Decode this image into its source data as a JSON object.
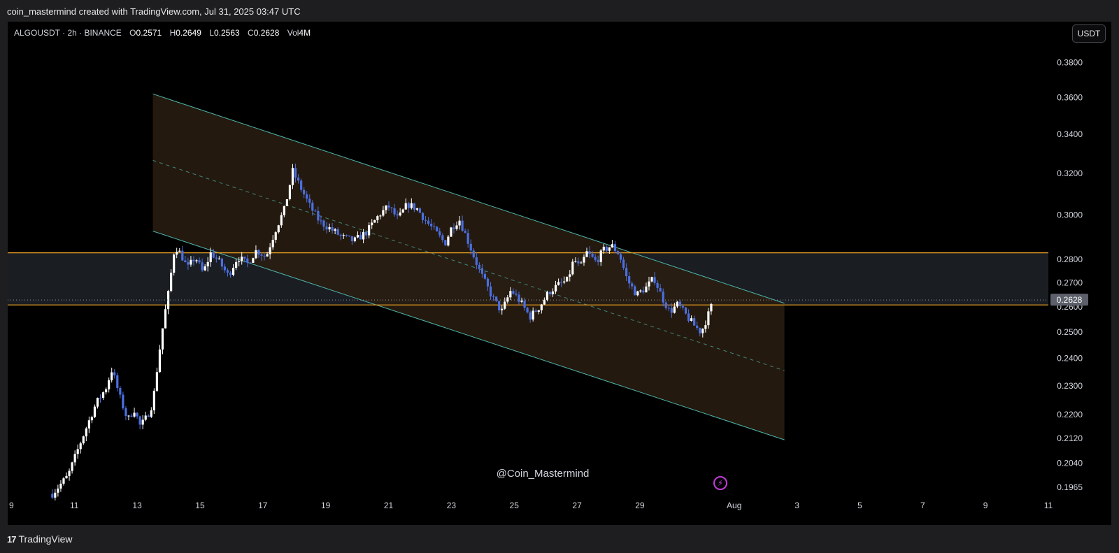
{
  "caption": "coin_mastermind created with TradingView.com, Jul 31, 2025 03:47 UTC",
  "legend": {
    "symbol": "ALGOUSDT · 2h · BINANCE",
    "open_label": "O",
    "open": "0.2571",
    "high_label": "H",
    "high": "0.2649",
    "low_label": "L",
    "low": "0.2563",
    "close_label": "C",
    "close": "0.2628",
    "vol_label": "Vol",
    "vol": "4M"
  },
  "currency_button": "USDT",
  "watermark": "@Coin_Mastermind",
  "footer_brand": "TradingView",
  "colors": {
    "background": "#000000",
    "candle_up": "#ffffff",
    "candle_down": "#4b6fe0",
    "channel_line": "#4db6ac",
    "channel_fill": "#2a1d10",
    "support_lines": "#f5a623",
    "price_label_bg": "#5d606b",
    "accent_icon": "#c23cd9"
  },
  "chart_data": {
    "type": "candlestick",
    "title": "ALGOUSDT · 2h · BINANCE",
    "last_price": "0.2628",
    "y_scale": "log",
    "ylim": [
      0.1935,
      0.405
    ],
    "y_ticks": [
      "0.3800",
      "0.3600",
      "0.3400",
      "0.3200",
      "0.3000",
      "0.2800",
      "0.2700",
      "0.2600",
      "0.2500",
      "0.2400",
      "0.2300",
      "0.2200",
      "0.2120",
      "0.2040",
      "0.1965"
    ],
    "x_ticks": [
      "9",
      "11",
      "13",
      "15",
      "17",
      "19",
      "21",
      "23",
      "25",
      "27",
      "29",
      "Aug",
      "3",
      "5",
      "7",
      "9",
      "11"
    ],
    "x_tick_days": [
      9,
      11,
      13,
      15,
      17,
      19,
      21,
      23,
      25,
      27,
      29,
      32,
      34,
      36,
      38,
      40,
      42
    ],
    "xlim_days": [
      8.88,
      42.0
    ],
    "horizontal_levels": [
      0.2828,
      0.2608
    ],
    "zone_between_levels": true,
    "channel": {
      "upper": {
        "from": [
          13.5,
          0.362
        ],
        "to": [
          33.6,
          0.2615
        ]
      },
      "lower": {
        "from": [
          13.5,
          0.2925
        ],
        "to": [
          33.6,
          0.2115
        ]
      },
      "mid": {
        "from": [
          13.5,
          0.3265
        ],
        "to": [
          33.6,
          0.2355
        ]
      }
    },
    "price_path": [
      [
        10.3,
        0.1945
      ],
      [
        10.8,
        0.2
      ],
      [
        11.1,
        0.208
      ],
      [
        11.4,
        0.216
      ],
      [
        11.7,
        0.224
      ],
      [
        12.0,
        0.229
      ],
      [
        12.2,
        0.236
      ],
      [
        12.45,
        0.226
      ],
      [
        12.7,
        0.218
      ],
      [
        12.9,
        0.222
      ],
      [
        13.1,
        0.216
      ],
      [
        13.3,
        0.219
      ],
      [
        13.5,
        0.224
      ],
      [
        13.7,
        0.242
      ],
      [
        13.85,
        0.255
      ],
      [
        14.0,
        0.266
      ],
      [
        14.2,
        0.286
      ],
      [
        14.4,
        0.282
      ],
      [
        14.6,
        0.276
      ],
      [
        14.85,
        0.281
      ],
      [
        15.1,
        0.274
      ],
      [
        15.35,
        0.283
      ],
      [
        15.6,
        0.279
      ],
      [
        15.9,
        0.273
      ],
      [
        16.2,
        0.281
      ],
      [
        16.5,
        0.278
      ],
      [
        16.8,
        0.284
      ],
      [
        17.1,
        0.281
      ],
      [
        17.4,
        0.293
      ],
      [
        17.7,
        0.303
      ],
      [
        17.95,
        0.321
      ],
      [
        18.2,
        0.313
      ],
      [
        18.5,
        0.304
      ],
      [
        18.8,
        0.297
      ],
      [
        19.1,
        0.294
      ],
      [
        19.5,
        0.29
      ],
      [
        19.9,
        0.288
      ],
      [
        20.3,
        0.292
      ],
      [
        20.7,
        0.3
      ],
      [
        21.0,
        0.304
      ],
      [
        21.3,
        0.298
      ],
      [
        21.6,
        0.305
      ],
      [
        21.9,
        0.303
      ],
      [
        22.2,
        0.297
      ],
      [
        22.5,
        0.292
      ],
      [
        22.8,
        0.287
      ],
      [
        23.0,
        0.294
      ],
      [
        23.25,
        0.298
      ],
      [
        23.5,
        0.289
      ],
      [
        23.75,
        0.28
      ],
      [
        24.0,
        0.272
      ],
      [
        24.3,
        0.264
      ],
      [
        24.6,
        0.258
      ],
      [
        24.9,
        0.267
      ],
      [
        25.2,
        0.262
      ],
      [
        25.5,
        0.256
      ],
      [
        25.8,
        0.26
      ],
      [
        26.1,
        0.266
      ],
      [
        26.4,
        0.269
      ],
      [
        26.7,
        0.271
      ],
      [
        26.9,
        0.28
      ],
      [
        27.1,
        0.276
      ],
      [
        27.3,
        0.283
      ],
      [
        27.6,
        0.279
      ],
      [
        27.85,
        0.284
      ],
      [
        28.1,
        0.286
      ],
      [
        28.35,
        0.282
      ],
      [
        28.6,
        0.271
      ],
      [
        28.9,
        0.265
      ],
      [
        29.2,
        0.268
      ],
      [
        29.45,
        0.272
      ],
      [
        29.7,
        0.264
      ],
      [
        29.95,
        0.258
      ],
      [
        30.2,
        0.261
      ],
      [
        30.45,
        0.257
      ],
      [
        30.7,
        0.253
      ],
      [
        30.95,
        0.25
      ],
      [
        31.15,
        0.256
      ],
      [
        31.35,
        0.2628
      ]
    ]
  }
}
